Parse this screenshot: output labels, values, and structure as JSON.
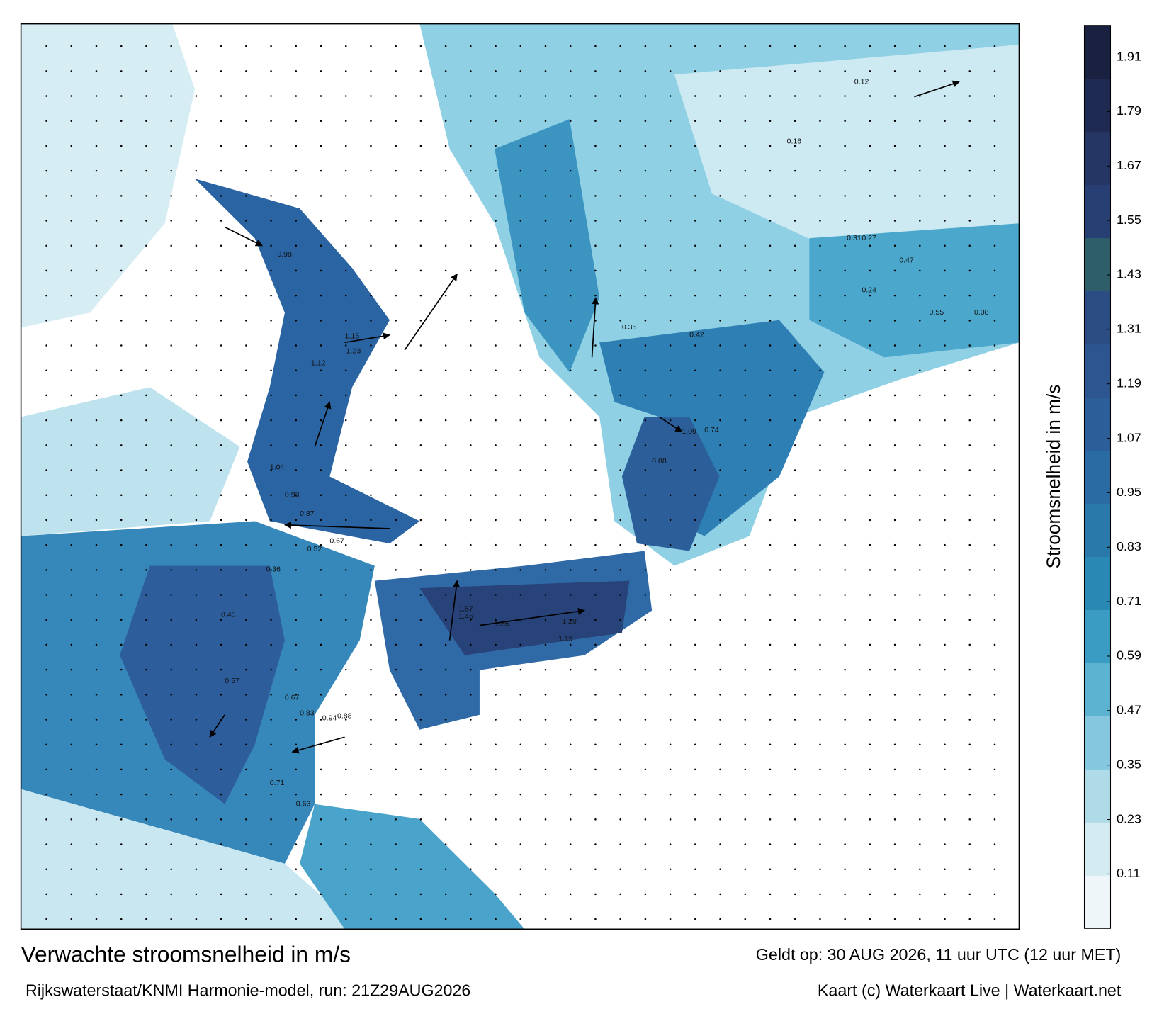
{
  "map": {
    "title": "Verwachte stroomsnelheid in m/s",
    "subtitle": "Rijkswaterstaat/KNMI Harmonie-model, run: 21Z29AUG2026",
    "valid": "Geldt op: 30 AUG 2026, 11 uur UTC (12 uur MET)",
    "credit": "Kaart (c) Waterkaart Live | Waterkaart.net",
    "colorbar": {
      "label": "Stroomsnelheid in m/s",
      "lim": [
        -0.01,
        1.98
      ],
      "ticks": [
        0.11,
        0.23,
        0.35,
        0.47,
        0.59,
        0.71,
        0.83,
        0.95,
        1.07,
        1.19,
        1.31,
        1.43,
        1.55,
        1.67,
        1.79,
        1.91
      ],
      "colors": [
        "#eef6f9",
        "#d4ebf2",
        "#afdbe9",
        "#84c7de",
        "#5bb2d1",
        "#3a9cc2",
        "#2a88b4",
        "#2a79ab",
        "#2b6ba3",
        "#2c5f9a",
        "#2d5690",
        "#2c4c84",
        "#2e5e6a",
        "#283f74",
        "#253564",
        "#1f2a52",
        "#1a2040"
      ]
    },
    "current_labels": [
      0.98,
      1.15,
      1.23,
      1.12,
      1.04,
      0.93,
      0.87,
      0.67,
      0.52,
      0.36,
      0.45,
      0.57,
      0.67,
      0.83,
      0.94,
      0.88,
      0.71,
      0.63,
      1.46,
      1.57,
      1.85,
      1.29,
      1.19,
      0.88,
      1.09,
      0.74,
      0.47,
      0.31,
      0.27,
      0.16,
      0.55,
      0.24,
      0.12,
      0.08,
      0.35,
      0.42
    ]
  }
}
